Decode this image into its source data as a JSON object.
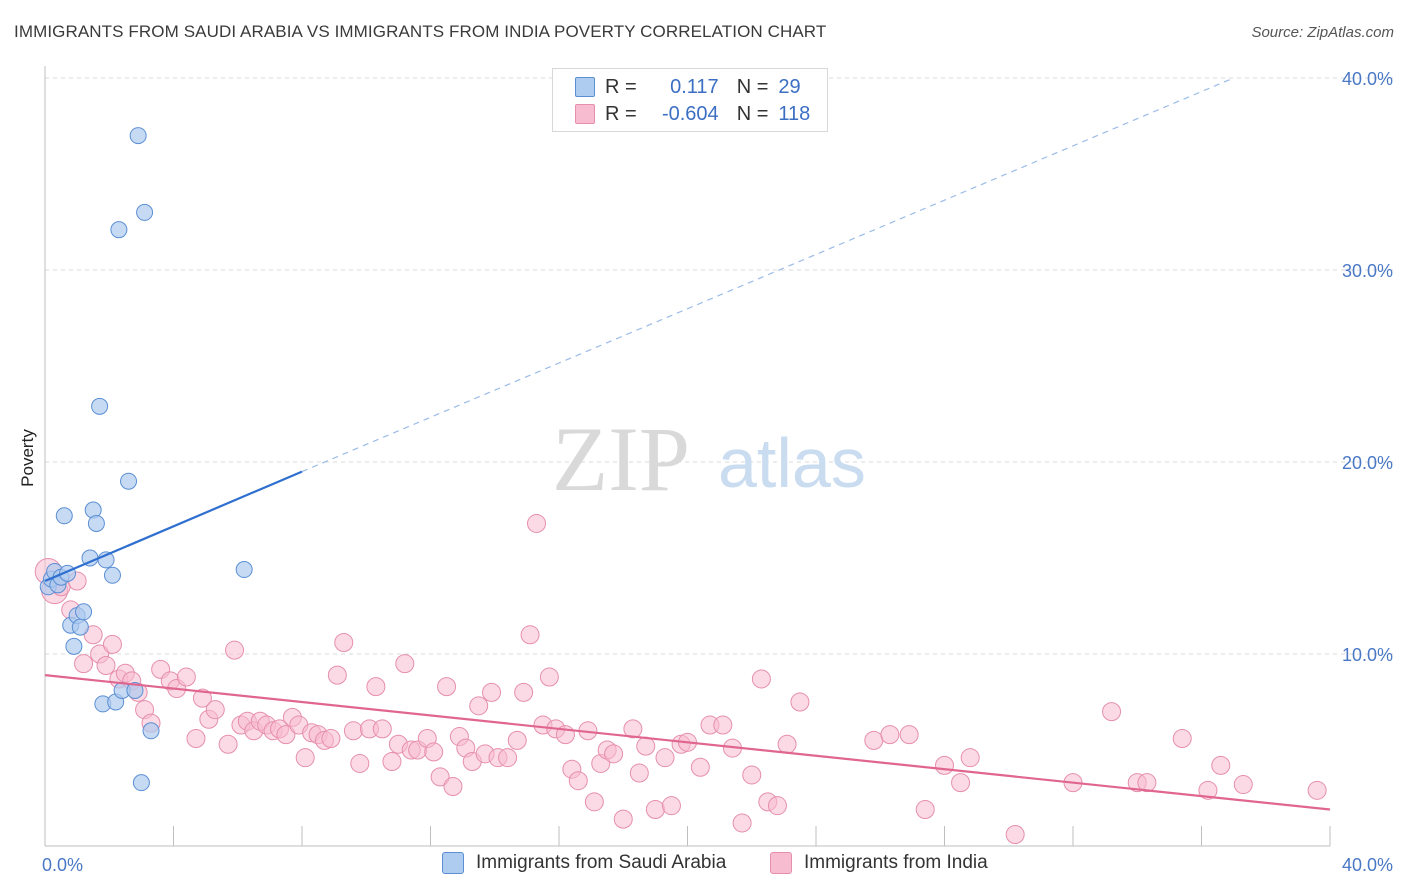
{
  "header": {
    "title": "IMMIGRANTS FROM SAUDI ARABIA VS IMMIGRANTS FROM INDIA POVERTY CORRELATION CHART",
    "source": "Source: ZipAtlas.com"
  },
  "watermark": {
    "zip": "ZIP",
    "atlas": "atlas"
  },
  "legend": {
    "rows": [
      {
        "r_label": "R =",
        "r_value": "0.117",
        "n_label": "N =",
        "n_value": "29"
      },
      {
        "r_label": "R =",
        "r_value": "-0.604",
        "n_label": "N =",
        "n_value": "118"
      }
    ]
  },
  "bottom_legend": {
    "saudi": "Immigrants from Saudi Arabia",
    "india": "Immigrants from India"
  },
  "colors": {
    "saudi_fill": "#aecbf0",
    "saudi_stroke": "#5b8fd4",
    "saudi_line": "#2f6fcf",
    "india_fill": "#f7bccf",
    "india_stroke": "#e68fac",
    "india_line": "#e0668f",
    "grid": "#d9d9d9",
    "tick_text": "#4a78c6"
  },
  "chart_data": {
    "type": "scatter",
    "title": "IMMIGRANTS FROM SAUDI ARABIA VS IMMIGRANTS FROM INDIA POVERTY CORRELATION CHART",
    "xlabel": "",
    "ylabel": "Poverty",
    "xlim": [
      0,
      40
    ],
    "ylim": [
      0,
      40
    ],
    "x_tick_labels": [
      "0.0%",
      "40.0%"
    ],
    "y_ticks": [
      10,
      20,
      30,
      40
    ],
    "y_tick_labels": [
      "10.0%",
      "20.0%",
      "30.0%",
      "40.0%"
    ],
    "grid": true,
    "legend_position": "top-center",
    "series": [
      {
        "name": "Immigrants from Saudi Arabia",
        "r": 0.117,
        "n": 29,
        "trend": {
          "x0": 0.0,
          "y0": 13.8,
          "x1": 8.0,
          "y1": 19.5,
          "dash_to_x": 37.0,
          "dash_to_y": 40.0
        },
        "points": [
          [
            0.1,
            13.5
          ],
          [
            0.2,
            13.9
          ],
          [
            0.3,
            14.3
          ],
          [
            0.4,
            13.6
          ],
          [
            0.5,
            14.0
          ],
          [
            0.6,
            17.2
          ],
          [
            0.7,
            14.2
          ],
          [
            0.8,
            11.5
          ],
          [
            0.9,
            10.4
          ],
          [
            1.0,
            12.0
          ],
          [
            1.1,
            11.4
          ],
          [
            1.2,
            12.2
          ],
          [
            1.4,
            15.0
          ],
          [
            1.5,
            17.5
          ],
          [
            1.6,
            16.8
          ],
          [
            1.7,
            22.9
          ],
          [
            1.8,
            7.4
          ],
          [
            1.9,
            14.9
          ],
          [
            2.1,
            14.1
          ],
          [
            2.2,
            7.5
          ],
          [
            2.3,
            32.1
          ],
          [
            2.4,
            8.1
          ],
          [
            2.6,
            19.0
          ],
          [
            2.8,
            8.1
          ],
          [
            2.9,
            37.0
          ],
          [
            3.0,
            3.3
          ],
          [
            3.1,
            33.0
          ],
          [
            3.3,
            6.0
          ],
          [
            6.2,
            14.4
          ]
        ]
      },
      {
        "name": "Immigrants from India",
        "r": -0.604,
        "n": 118,
        "trend": {
          "x0": 0.0,
          "y0": 8.9,
          "x1": 40.0,
          "y1": 1.9
        },
        "points": [
          [
            0.1,
            14.3
          ],
          [
            0.3,
            13.3
          ],
          [
            0.5,
            13.5
          ],
          [
            0.8,
            12.3
          ],
          [
            1.0,
            13.8
          ],
          [
            1.2,
            9.5
          ],
          [
            1.5,
            11.0
          ],
          [
            1.7,
            10.0
          ],
          [
            1.9,
            9.4
          ],
          [
            2.1,
            10.5
          ],
          [
            2.3,
            8.7
          ],
          [
            2.5,
            9.0
          ],
          [
            2.7,
            8.6
          ],
          [
            2.9,
            8.0
          ],
          [
            3.1,
            7.1
          ],
          [
            3.3,
            6.4
          ],
          [
            3.6,
            9.2
          ],
          [
            3.9,
            8.6
          ],
          [
            4.1,
            8.2
          ],
          [
            4.4,
            8.8
          ],
          [
            4.7,
            5.6
          ],
          [
            4.9,
            7.7
          ],
          [
            5.1,
            6.6
          ],
          [
            5.3,
            7.1
          ],
          [
            5.7,
            5.3
          ],
          [
            5.9,
            10.2
          ],
          [
            6.1,
            6.3
          ],
          [
            6.3,
            6.5
          ],
          [
            6.5,
            6.0
          ],
          [
            6.7,
            6.5
          ],
          [
            6.9,
            6.3
          ],
          [
            7.1,
            6.0
          ],
          [
            7.3,
            6.1
          ],
          [
            7.5,
            5.8
          ],
          [
            7.7,
            6.7
          ],
          [
            7.9,
            6.3
          ],
          [
            8.1,
            4.6
          ],
          [
            8.3,
            5.9
          ],
          [
            8.5,
            5.8
          ],
          [
            8.7,
            5.5
          ],
          [
            8.9,
            5.6
          ],
          [
            9.1,
            8.9
          ],
          [
            9.3,
            10.6
          ],
          [
            9.6,
            6.0
          ],
          [
            9.8,
            4.3
          ],
          [
            10.1,
            6.1
          ],
          [
            10.3,
            8.3
          ],
          [
            10.5,
            6.1
          ],
          [
            10.8,
            4.4
          ],
          [
            11.0,
            5.3
          ],
          [
            11.2,
            9.5
          ],
          [
            11.4,
            5.0
          ],
          [
            11.6,
            5.0
          ],
          [
            11.9,
            5.6
          ],
          [
            12.1,
            4.9
          ],
          [
            12.3,
            3.6
          ],
          [
            12.5,
            8.3
          ],
          [
            12.7,
            3.1
          ],
          [
            12.9,
            5.7
          ],
          [
            13.1,
            5.1
          ],
          [
            13.3,
            4.4
          ],
          [
            13.5,
            7.3
          ],
          [
            13.7,
            4.8
          ],
          [
            13.9,
            8.0
          ],
          [
            14.1,
            4.6
          ],
          [
            14.4,
            4.6
          ],
          [
            14.7,
            5.5
          ],
          [
            14.9,
            8.0
          ],
          [
            15.1,
            11.0
          ],
          [
            15.3,
            16.8
          ],
          [
            15.5,
            6.3
          ],
          [
            15.7,
            8.8
          ],
          [
            15.9,
            6.1
          ],
          [
            16.2,
            5.8
          ],
          [
            16.4,
            4.0
          ],
          [
            16.6,
            3.4
          ],
          [
            16.9,
            6.0
          ],
          [
            17.1,
            2.3
          ],
          [
            17.3,
            4.3
          ],
          [
            17.5,
            5.0
          ],
          [
            17.7,
            4.8
          ],
          [
            18.0,
            1.4
          ],
          [
            18.3,
            6.1
          ],
          [
            18.5,
            3.8
          ],
          [
            18.7,
            5.2
          ],
          [
            19.0,
            1.9
          ],
          [
            19.3,
            4.6
          ],
          [
            19.5,
            2.1
          ],
          [
            19.8,
            5.3
          ],
          [
            20.0,
            5.4
          ],
          [
            20.4,
            4.1
          ],
          [
            20.7,
            6.3
          ],
          [
            21.1,
            6.3
          ],
          [
            21.4,
            5.1
          ],
          [
            21.7,
            1.2
          ],
          [
            22.0,
            3.7
          ],
          [
            22.3,
            8.7
          ],
          [
            22.5,
            2.3
          ],
          [
            22.8,
            2.1
          ],
          [
            23.1,
            5.3
          ],
          [
            23.5,
            7.5
          ],
          [
            25.8,
            5.5
          ],
          [
            26.3,
            5.8
          ],
          [
            26.9,
            5.8
          ],
          [
            27.4,
            1.9
          ],
          [
            28.0,
            4.2
          ],
          [
            28.5,
            3.3
          ],
          [
            28.8,
            4.6
          ],
          [
            30.2,
            0.6
          ],
          [
            32.0,
            3.3
          ],
          [
            33.2,
            7.0
          ],
          [
            34.0,
            3.3
          ],
          [
            34.3,
            3.3
          ],
          [
            35.4,
            5.6
          ],
          [
            36.2,
            2.9
          ],
          [
            36.6,
            4.2
          ],
          [
            37.3,
            3.2
          ],
          [
            39.6,
            2.9
          ]
        ]
      }
    ]
  }
}
